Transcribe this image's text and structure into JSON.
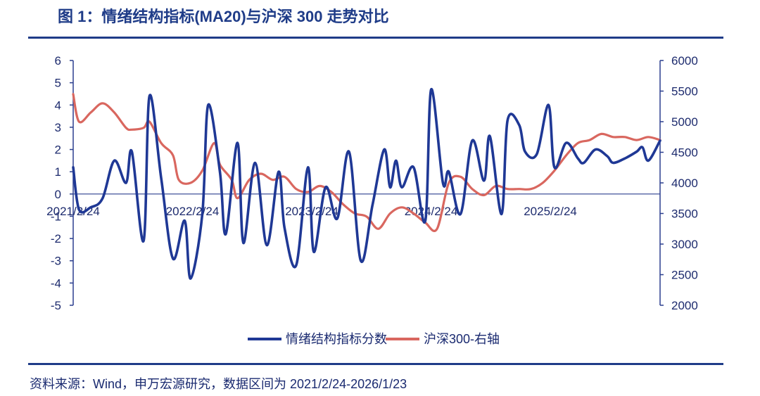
{
  "title": "图 1：情绪结构指标(MA20)与沪深 300 走势对比",
  "source": "资料来源：Wind，申万宏源研究，数据区间为 2021/2/24-2026/1/23",
  "chart_data": {
    "type": "line",
    "title": "情绪结构指标(MA20)与沪深 300 走势对比",
    "x_date_range": [
      "2021/2/24",
      "2026/1/23"
    ],
    "x_tick_labels": [
      "2021/2/24",
      "2022/2/24",
      "2023/2/24",
      "2024/2/24",
      "2025/2/24"
    ],
    "left_axis": {
      "ylim": [
        -5,
        6
      ],
      "ticks": [
        -5,
        -4,
        -3,
        -2,
        -1,
        0,
        1,
        2,
        3,
        4,
        5,
        6
      ]
    },
    "right_axis": {
      "ylim": [
        2000,
        6000
      ],
      "ticks": [
        2000,
        2500,
        3000,
        3500,
        4000,
        4500,
        5000,
        5500,
        6000
      ]
    },
    "legend_position": "bottom-center",
    "series": [
      {
        "name": "情绪结构指标分数",
        "axis": "left",
        "color": "#1f3895",
        "x": [
          0,
          0.01,
          0.03,
          0.05,
          0.07,
          0.09,
          0.1,
          0.12,
          0.13,
          0.15,
          0.17,
          0.19,
          0.2,
          0.22,
          0.23,
          0.25,
          0.26,
          0.28,
          0.29,
          0.31,
          0.33,
          0.35,
          0.36,
          0.38,
          0.4,
          0.41,
          0.43,
          0.45,
          0.47,
          0.49,
          0.51,
          0.53,
          0.54,
          0.55,
          0.56,
          0.58,
          0.6,
          0.61,
          0.63,
          0.64,
          0.66,
          0.68,
          0.7,
          0.71,
          0.73,
          0.74,
          0.76,
          0.77,
          0.79,
          0.81,
          0.82,
          0.84,
          0.86,
          0.87,
          0.89,
          0.91,
          0.92,
          0.94,
          0.96,
          0.97,
          0.98,
          1.0
        ],
        "values": [
          1.2,
          -0.7,
          -0.6,
          -0.2,
          1.5,
          0.5,
          1.9,
          -2.1,
          4.4,
          0.7,
          -2.9,
          -1.2,
          -3.8,
          -0.9,
          4.0,
          1.0,
          -1.8,
          2.3,
          -2.2,
          1.4,
          -2.3,
          1.0,
          -1.5,
          -3.2,
          1.2,
          -2.6,
          0.3,
          -1.1,
          1.9,
          -3.0,
          -0.5,
          2.0,
          0.3,
          1.5,
          0.3,
          1.2,
          -1.2,
          4.7,
          0.5,
          1.0,
          -0.9,
          2.4,
          0.6,
          2.6,
          -0.9,
          3.3,
          3.1,
          1.9,
          1.8,
          4.0,
          1.2,
          2.3,
          1.6,
          1.4,
          2.0,
          1.7,
          1.4,
          1.6,
          1.9,
          2.1,
          1.5,
          2.4
        ]
      },
      {
        "name": "沪深300-右轴",
        "axis": "right",
        "color": "#d9675f",
        "x": [
          0,
          0.01,
          0.03,
          0.05,
          0.07,
          0.09,
          0.1,
          0.12,
          0.13,
          0.15,
          0.17,
          0.18,
          0.2,
          0.22,
          0.24,
          0.25,
          0.27,
          0.28,
          0.3,
          0.32,
          0.34,
          0.36,
          0.38,
          0.4,
          0.42,
          0.44,
          0.46,
          0.48,
          0.5,
          0.52,
          0.54,
          0.56,
          0.58,
          0.6,
          0.62,
          0.64,
          0.66,
          0.68,
          0.7,
          0.72,
          0.74,
          0.76,
          0.78,
          0.8,
          0.82,
          0.84,
          0.86,
          0.88,
          0.9,
          0.92,
          0.94,
          0.96,
          0.98,
          1.0
        ],
        "values": [
          5450,
          5000,
          5150,
          5300,
          5150,
          4900,
          4870,
          4900,
          5000,
          4650,
          4450,
          4050,
          4000,
          4200,
          4650,
          4300,
          4050,
          3750,
          4050,
          4150,
          4050,
          4100,
          3900,
          3850,
          3950,
          3850,
          3650,
          3500,
          3450,
          3250,
          3500,
          3600,
          3500,
          3350,
          3250,
          4000,
          4100,
          3900,
          3800,
          3950,
          3900,
          3900,
          3900,
          4000,
          4200,
          4450,
          4650,
          4700,
          4800,
          4750,
          4750,
          4700,
          4750,
          4700
        ]
      }
    ]
  }
}
